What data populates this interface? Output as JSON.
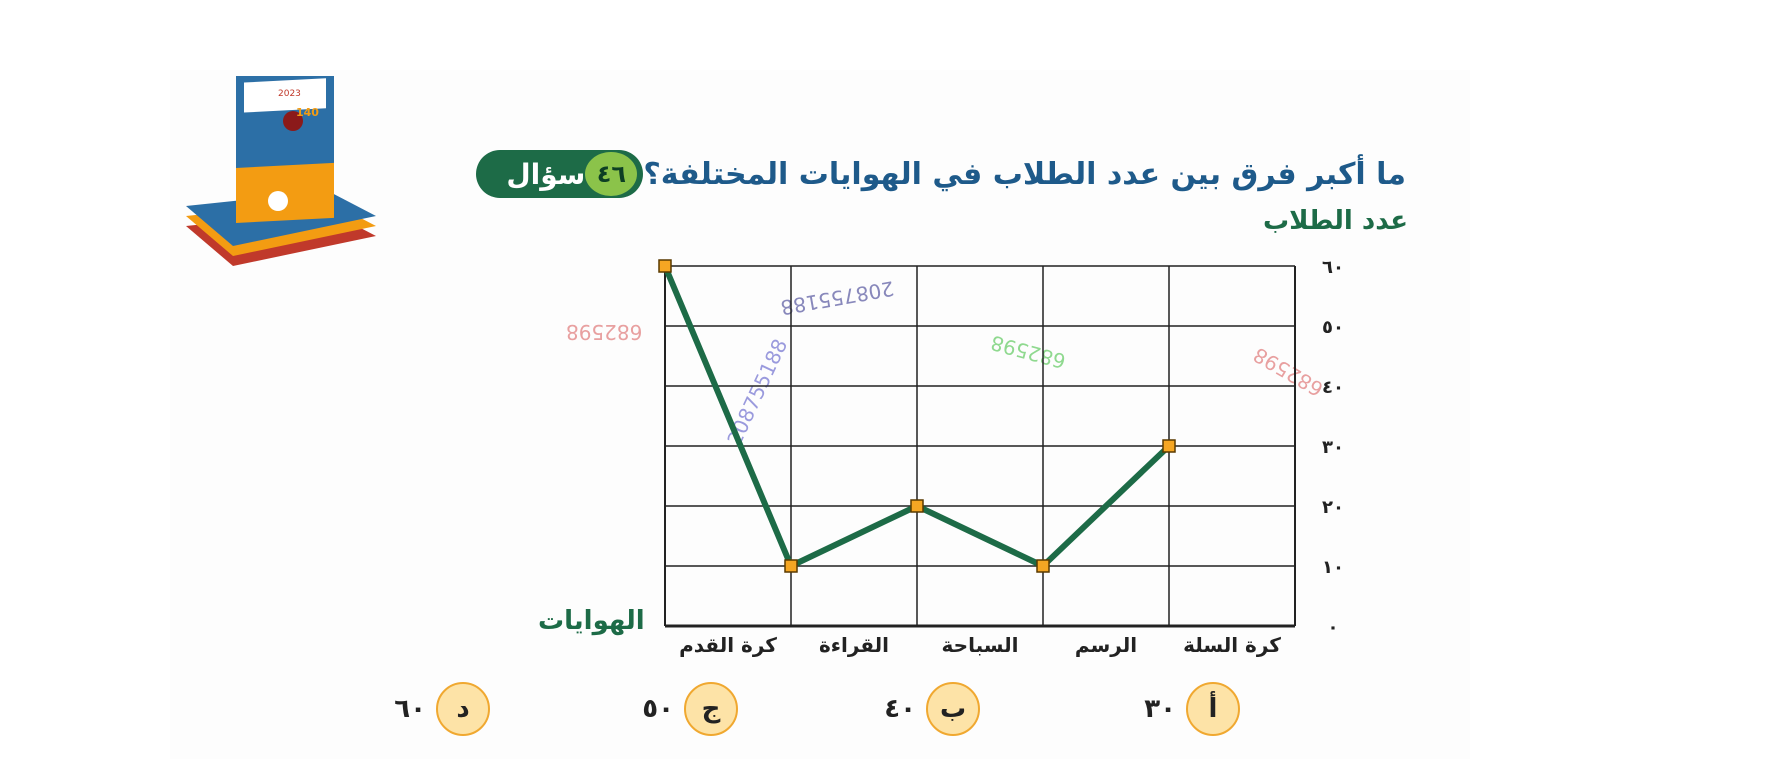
{
  "question": {
    "label": "سؤال",
    "number": "٤٦",
    "text": "ما أكبر فرق بين عدد الطلاب في الهوايات المختلفة؟"
  },
  "chart_data": {
    "type": "line",
    "categories": [
      "كرة السلة",
      "الرسم",
      "السباحة",
      "القراءة",
      "كرة القدم"
    ],
    "values": [
      30,
      10,
      20,
      10,
      60
    ],
    "ylabel": "عدد الطلاب",
    "xlabel": "الهوايات",
    "ylim": [
      0,
      60
    ],
    "yticks": [
      "٠",
      "١٠",
      "٢٠",
      "٣٠",
      "٤٠",
      "٥٠",
      "٦٠"
    ],
    "grid": true,
    "line_color": "#1d6b47",
    "marker_color": "#f5a623"
  },
  "answers": [
    {
      "letter": "أ",
      "value": "٣٠"
    },
    {
      "letter": "ب",
      "value": "٤٠"
    },
    {
      "letter": "ج",
      "value": "٥٠"
    },
    {
      "letter": "د",
      "value": "٦٠"
    }
  ],
  "watermarks": {
    "code1": "682598",
    "code2": "208755188",
    "code3": "682598",
    "code4": "682598",
    "code5": "208755188"
  },
  "book_cover": {
    "year": "2023",
    "count": "140"
  },
  "colors": {
    "accent": "#1d6b47",
    "question_text": "#1e5a8a",
    "badge_number_bg": "#8bc34a",
    "answer_circle": "#fde3a7"
  }
}
